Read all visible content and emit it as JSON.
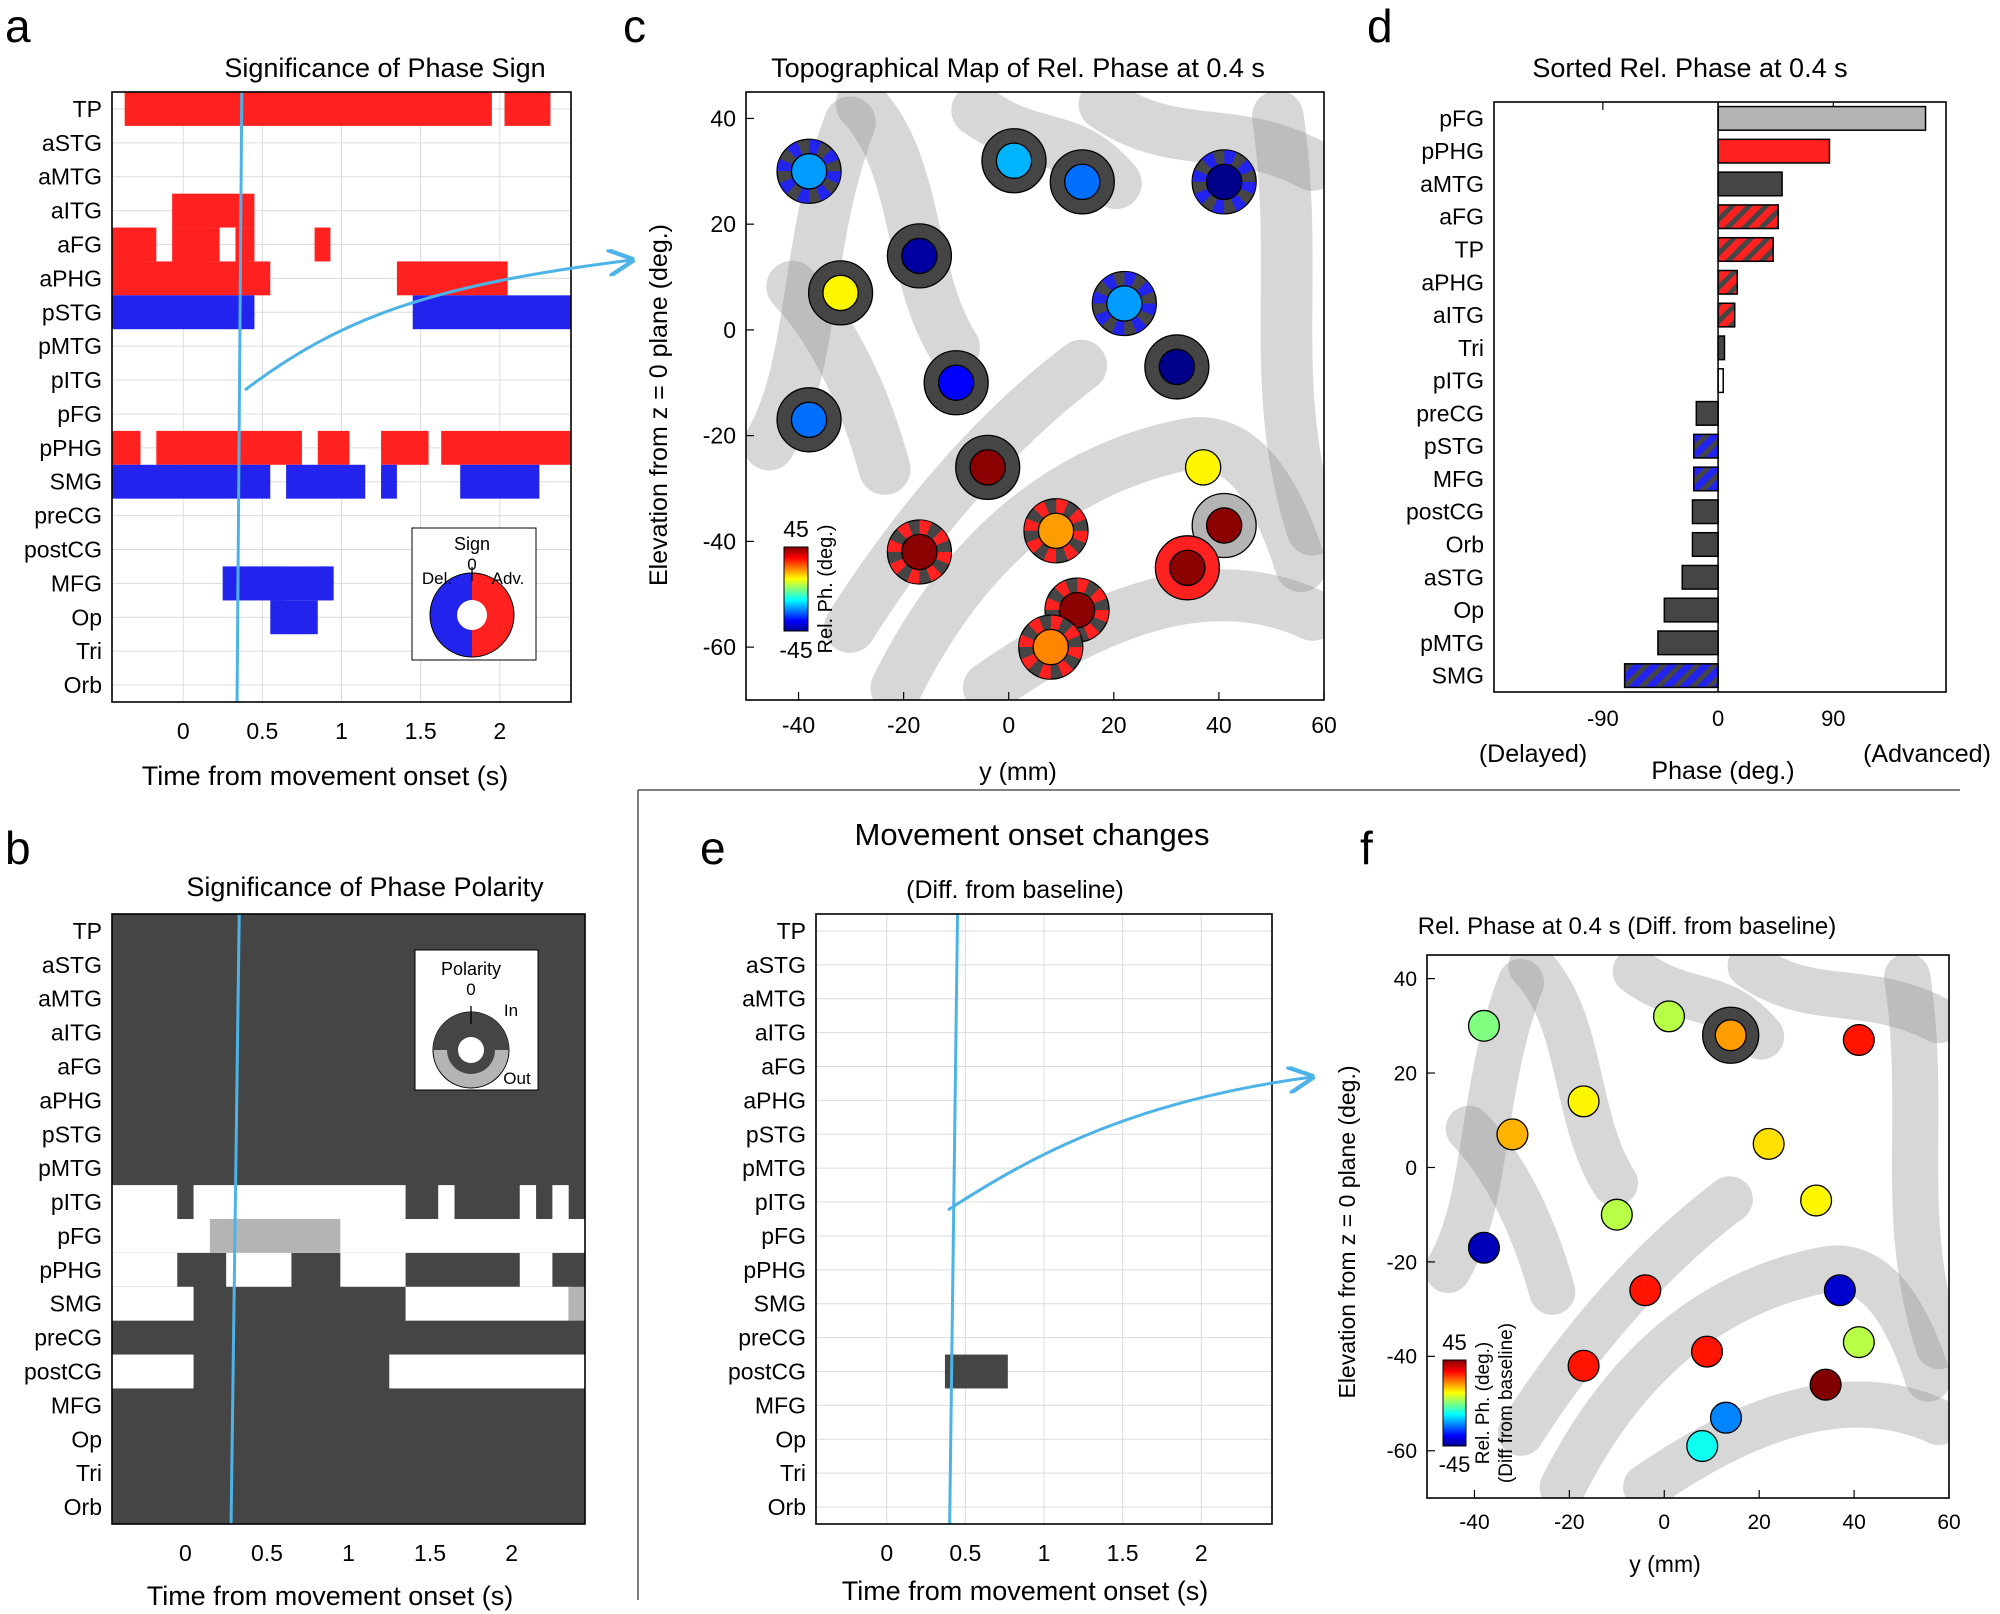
{
  "panel_labels": [
    "a",
    "b",
    "c",
    "d",
    "e",
    "f"
  ],
  "regions": [
    "TP",
    "aSTG",
    "aMTG",
    "aITG",
    "aFG",
    "aPHG",
    "pSTG",
    "pMTG",
    "pITG",
    "pFG",
    "pPHG",
    "SMG",
    "preCG",
    "postCG",
    "MFG",
    "Op",
    "Tri",
    "Orb"
  ],
  "colors": {
    "advanced": "#ff2020",
    "delayed": "#2323ee",
    "dark": "#454545",
    "grey": "#b4b4b4",
    "cursor": "#4db3e6",
    "grid": "#dcdcdc"
  },
  "time_axis": {
    "ticks": [
      0,
      0.5,
      1,
      1.5,
      2
    ],
    "tick_labels": [
      "0",
      "0.5",
      "1",
      "1.5",
      "2"
    ],
    "xlabel": "Time from movement onset  (s)"
  },
  "chart_data": [
    {
      "id": "a",
      "type": "heatmap",
      "title": "Significance of Phase Sign",
      "xlim": [
        -0.45,
        2.45
      ],
      "cursor": {
        "time_top": 0.37,
        "time_bottom": 0.34
      },
      "legend": {
        "title": "Sign",
        "zero": "0",
        "left": "Del.",
        "right": "Adv."
      },
      "segments": [
        {
          "row": "TP",
          "start": -0.37,
          "end": 1.95,
          "sign": "advanced"
        },
        {
          "row": "TP",
          "start": 2.03,
          "end": 2.32,
          "sign": "advanced"
        },
        {
          "row": "aITG",
          "start": -0.07,
          "end": 0.45,
          "sign": "advanced"
        },
        {
          "row": "aFG",
          "start": -0.45,
          "end": -0.17,
          "sign": "advanced"
        },
        {
          "row": "aFG",
          "start": -0.07,
          "end": 0.23,
          "sign": "advanced"
        },
        {
          "row": "aFG",
          "start": 0.33,
          "end": 0.45,
          "sign": "advanced"
        },
        {
          "row": "aFG",
          "start": 0.83,
          "end": 0.93,
          "sign": "advanced"
        },
        {
          "row": "aPHG",
          "start": -0.45,
          "end": 0.55,
          "sign": "advanced"
        },
        {
          "row": "aPHG",
          "start": 1.35,
          "end": 2.05,
          "sign": "advanced"
        },
        {
          "row": "pSTG",
          "start": -0.45,
          "end": 0.45,
          "sign": "delayed"
        },
        {
          "row": "pSTG",
          "start": 1.45,
          "end": 2.45,
          "sign": "delayed"
        },
        {
          "row": "pPHG",
          "start": -0.45,
          "end": -0.27,
          "sign": "advanced"
        },
        {
          "row": "pPHG",
          "start": -0.17,
          "end": 0.75,
          "sign": "advanced"
        },
        {
          "row": "pPHG",
          "start": 0.85,
          "end": 1.05,
          "sign": "advanced"
        },
        {
          "row": "pPHG",
          "start": 1.25,
          "end": 1.55,
          "sign": "advanced"
        },
        {
          "row": "pPHG",
          "start": 1.63,
          "end": 2.45,
          "sign": "advanced"
        },
        {
          "row": "SMG",
          "start": -0.45,
          "end": 0.55,
          "sign": "delayed"
        },
        {
          "row": "SMG",
          "start": 0.65,
          "end": 1.15,
          "sign": "delayed"
        },
        {
          "row": "SMG",
          "start": 1.25,
          "end": 1.35,
          "sign": "delayed"
        },
        {
          "row": "SMG",
          "start": 1.75,
          "end": 2.25,
          "sign": "delayed"
        },
        {
          "row": "MFG",
          "start": 0.25,
          "end": 0.65,
          "sign": "delayed"
        },
        {
          "row": "MFG",
          "start": 0.85,
          "end": 0.95,
          "sign": "delayed"
        },
        {
          "row": "MFG",
          "start": 0.25,
          "end": 0.95,
          "sign": "delayed"
        },
        {
          "row": "Op",
          "start": 0.55,
          "end": 0.85,
          "sign": "delayed"
        }
      ]
    },
    {
      "id": "b",
      "type": "heatmap",
      "title": "Significance of Phase Polarity",
      "xlim": [
        -0.45,
        2.45
      ],
      "cursor": {
        "time_top": 0.33,
        "time_bottom": 0.28
      },
      "legend": {
        "title": "Polarity",
        "zero": "0",
        "inner": "In",
        "outer": "Out"
      },
      "segments": [
        {
          "row": "pITG",
          "start": -0.45,
          "end": -0.05,
          "polarity": "none"
        },
        {
          "row": "pITG",
          "start": 0.05,
          "end": 1.35,
          "polarity": "none"
        },
        {
          "row": "pITG",
          "start": 1.55,
          "end": 1.65,
          "polarity": "none"
        },
        {
          "row": "pITG",
          "start": 2.05,
          "end": 2.15,
          "polarity": "none"
        },
        {
          "row": "pITG",
          "start": 2.25,
          "end": 2.35,
          "polarity": "none"
        },
        {
          "row": "pFG",
          "start": -0.45,
          "end": 2.45,
          "polarity": "none"
        },
        {
          "row": "pFG",
          "start": 0.15,
          "end": 0.95,
          "polarity": "out"
        },
        {
          "row": "pPHG",
          "start": -0.45,
          "end": -0.05,
          "polarity": "none"
        },
        {
          "row": "pPHG",
          "start": 0.25,
          "end": 0.65,
          "polarity": "none"
        },
        {
          "row": "pPHG",
          "start": 0.95,
          "end": 1.35,
          "polarity": "none"
        },
        {
          "row": "pPHG",
          "start": 2.05,
          "end": 2.25,
          "polarity": "none"
        },
        {
          "row": "SMG",
          "start": -0.45,
          "end": 0.05,
          "polarity": "none"
        },
        {
          "row": "SMG",
          "start": 1.35,
          "end": 2.35,
          "polarity": "none"
        },
        {
          "row": "SMG",
          "start": 2.35,
          "end": 2.45,
          "polarity": "out"
        },
        {
          "row": "postCG",
          "start": -0.45,
          "end": 0.05,
          "polarity": "none"
        },
        {
          "row": "postCG",
          "start": 1.25,
          "end": 2.45,
          "polarity": "none"
        }
      ]
    },
    {
      "id": "c",
      "type": "scatter",
      "title": "Topographical Map of Rel. Phase at 0.4 s",
      "xlabel": "y (mm)",
      "ylabel": "Elevation from z = 0 plane (deg.)",
      "xlim": [
        -50,
        60
      ],
      "ylim": [
        -70,
        45
      ],
      "xticks": [
        -40,
        -20,
        0,
        20,
        40,
        60
      ],
      "yticks": [
        -60,
        -40,
        -20,
        0,
        20,
        40
      ],
      "colorbar": {
        "label": "Rel. Ph. (deg.)",
        "max": "45",
        "min": "-45"
      },
      "points": [
        {
          "y": -38,
          "elev": 30,
          "phase": -20,
          "ring": "dashed-blue"
        },
        {
          "y": 1,
          "elev": 32,
          "phase": -18,
          "ring": "dark"
        },
        {
          "y": 14,
          "elev": 28,
          "phase": -24,
          "ring": "dark"
        },
        {
          "y": 41,
          "elev": 28,
          "phase": -44,
          "ring": "dashed-blue"
        },
        {
          "y": -32,
          "elev": 7,
          "phase": 12,
          "ring": "dark"
        },
        {
          "y": -17,
          "elev": 14,
          "phase": -42,
          "ring": "dark"
        },
        {
          "y": 22,
          "elev": 5,
          "phase": -20,
          "ring": "dashed-blue"
        },
        {
          "y": -38,
          "elev": -17,
          "phase": -24,
          "ring": "dark"
        },
        {
          "y": -10,
          "elev": -10,
          "phase": -34,
          "ring": "dark"
        },
        {
          "y": 32,
          "elev": -7,
          "phase": -44,
          "ring": "dark"
        },
        {
          "y": -4,
          "elev": -26,
          "phase": 44,
          "ring": "dark"
        },
        {
          "y": 37,
          "elev": -26,
          "phase": 12,
          "ring": "none"
        },
        {
          "y": 9,
          "elev": -38,
          "phase": 20,
          "ring": "dashed-red"
        },
        {
          "y": 41,
          "elev": -37,
          "phase": 44,
          "ring": "grey"
        },
        {
          "y": -17,
          "elev": -42,
          "phase": 44,
          "ring": "dashed-red"
        },
        {
          "y": 34,
          "elev": -45,
          "phase": 44,
          "ring": "red"
        },
        {
          "y": 13,
          "elev": -53,
          "phase": 44,
          "ring": "dashed-red"
        },
        {
          "y": 8,
          "elev": -60,
          "phase": 22,
          "ring": "dashed-red"
        }
      ]
    },
    {
      "id": "d",
      "type": "bar",
      "title": "Sorted Rel. Phase at 0.4 s",
      "xlabel": "Phase (deg.)",
      "xlim": [
        -175,
        178
      ],
      "xticks": [
        -90,
        0,
        90
      ],
      "xtick_labels": [
        "-90",
        "0",
        "90"
      ],
      "delayed_label": "(Delayed)",
      "advanced_label": "(Advanced)",
      "bars": [
        {
          "label": "pFG",
          "value": 162,
          "fill": "grey"
        },
        {
          "label": "pPHG",
          "value": 87,
          "fill": "red"
        },
        {
          "label": "aMTG",
          "value": 50,
          "fill": "dark"
        },
        {
          "label": "aFG",
          "value": 47,
          "fill": "hatch-red"
        },
        {
          "label": "TP",
          "value": 43,
          "fill": "hatch-red"
        },
        {
          "label": "aPHG",
          "value": 15,
          "fill": "hatch-red"
        },
        {
          "label": "aITG",
          "value": 13,
          "fill": "hatch-red"
        },
        {
          "label": "Tri",
          "value": 5,
          "fill": "dark"
        },
        {
          "label": "pITG",
          "value": 4,
          "fill": "white"
        },
        {
          "label": "preCG",
          "value": -17,
          "fill": "dark"
        },
        {
          "label": "pSTG",
          "value": -19,
          "fill": "hatch-blue"
        },
        {
          "label": "MFG",
          "value": -19,
          "fill": "hatch-blue"
        },
        {
          "label": "postCG",
          "value": -20,
          "fill": "dark"
        },
        {
          "label": "Orb",
          "value": -20,
          "fill": "dark"
        },
        {
          "label": "aSTG",
          "value": -28,
          "fill": "dark"
        },
        {
          "label": "Op",
          "value": -42,
          "fill": "dark"
        },
        {
          "label": "pMTG",
          "value": -47,
          "fill": "dark"
        },
        {
          "label": "SMG",
          "value": -73,
          "fill": "hatch-blue"
        }
      ]
    },
    {
      "id": "e",
      "type": "heatmap",
      "title": "Movement onset changes",
      "subtitle": "(Diff. from baseline)",
      "xlim": [
        -0.45,
        2.45
      ],
      "cursor": {
        "time_top": 0.45,
        "time_bottom": 0.4
      },
      "segments": [
        {
          "row": "postCG",
          "start": 0.37,
          "end": 0.77,
          "fill": "dark"
        }
      ]
    },
    {
      "id": "f",
      "type": "scatter",
      "title": "Rel. Phase at 0.4 s (Diff. from baseline)",
      "xlabel": "y (mm)",
      "ylabel": "Elevation from z = 0 plane (deg.)",
      "xlim": [
        -50,
        60
      ],
      "ylim": [
        -70,
        45
      ],
      "xticks": [
        -40,
        -20,
        0,
        20,
        40,
        60
      ],
      "yticks": [
        -60,
        -40,
        -20,
        0,
        20,
        40
      ],
      "colorbar": {
        "label": "Rel. Ph. (deg.)",
        "sublabel": "(Diff from baseline)",
        "max": "45",
        "min": "-45"
      },
      "points": [
        {
          "y": -38,
          "elev": 30,
          "phase": 0,
          "ring": "none"
        },
        {
          "y": 1,
          "elev": 32,
          "phase": 5,
          "ring": "none"
        },
        {
          "y": 14,
          "elev": 28,
          "phase": 20,
          "ring": "dark"
        },
        {
          "y": 41,
          "elev": 27,
          "phase": 32,
          "ring": "none"
        },
        {
          "y": -32,
          "elev": 7,
          "phase": 18,
          "ring": "none"
        },
        {
          "y": -17,
          "elev": 14,
          "phase": 12,
          "ring": "none"
        },
        {
          "y": 22,
          "elev": 5,
          "phase": 14,
          "ring": "none"
        },
        {
          "y": -38,
          "elev": -17,
          "phase": -40,
          "ring": "none"
        },
        {
          "y": -10,
          "elev": -10,
          "phase": 5,
          "ring": "none"
        },
        {
          "y": 32,
          "elev": -7,
          "phase": 12,
          "ring": "none"
        },
        {
          "y": -4,
          "elev": -26,
          "phase": 32,
          "ring": "none"
        },
        {
          "y": 37,
          "elev": -26,
          "phase": -38,
          "ring": "none"
        },
        {
          "y": 9,
          "elev": -39,
          "phase": 32,
          "ring": "none"
        },
        {
          "y": 41,
          "elev": -37,
          "phase": 5,
          "ring": "none"
        },
        {
          "y": -17,
          "elev": -42,
          "phase": 32,
          "ring": "none"
        },
        {
          "y": 34,
          "elev": -46,
          "phase": 45,
          "ring": "none"
        },
        {
          "y": 13,
          "elev": -53,
          "phase": -22,
          "ring": "none"
        },
        {
          "y": 8,
          "elev": -59,
          "phase": -10,
          "ring": "none"
        }
      ]
    }
  ]
}
